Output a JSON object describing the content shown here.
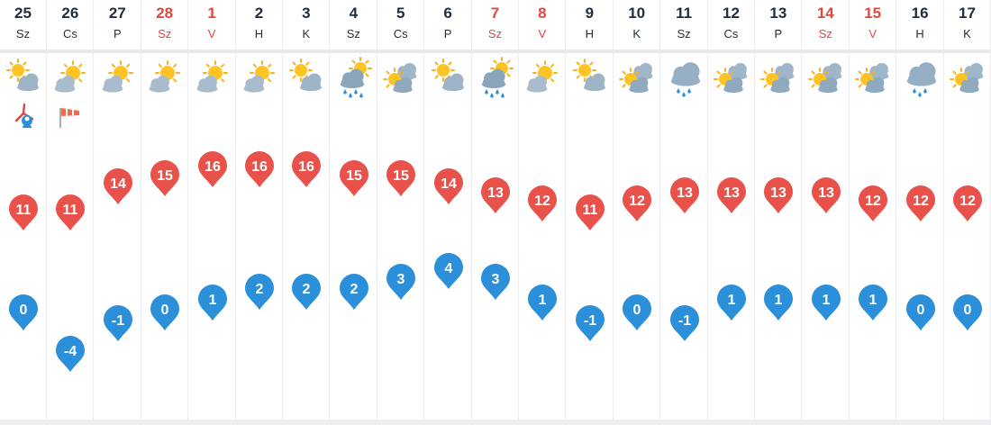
{
  "colors": {
    "max_temp_pin": "#e9524a",
    "min_temp_pin": "#2b8fd9",
    "weekend_text": "#e2463f",
    "weekday_text": "#1f2d3d"
  },
  "scale": {
    "temp_min": -4,
    "temp_max": 16
  },
  "days": [
    {
      "date": "25",
      "weekday": "Sz",
      "weekend": false,
      "icon": "sun-cloud-icon",
      "max": "11",
      "min": "0",
      "extra_icons": [
        "wind-turbine-icon"
      ]
    },
    {
      "date": "26",
      "weekday": "Cs",
      "weekend": false,
      "icon": "cloud-sun-icon",
      "max": "11",
      "min": "-4",
      "extra_icons": [
        "windsock-icon"
      ]
    },
    {
      "date": "27",
      "weekday": "P",
      "weekend": false,
      "icon": "cloud-sun-icon",
      "max": "14",
      "min": "-1",
      "extra_icons": []
    },
    {
      "date": "28",
      "weekday": "Sz",
      "weekend": true,
      "icon": "cloud-sun-icon",
      "max": "15",
      "min": "0",
      "extra_icons": []
    },
    {
      "date": "1",
      "weekday": "V",
      "weekend": true,
      "icon": "cloud-sun-icon",
      "max": "16",
      "min": "1",
      "extra_icons": []
    },
    {
      "date": "2",
      "weekday": "H",
      "weekend": false,
      "icon": "cloud-sun-icon",
      "max": "16",
      "min": "2",
      "extra_icons": []
    },
    {
      "date": "3",
      "weekday": "K",
      "weekend": false,
      "icon": "sun-cloud-icon",
      "max": "16",
      "min": "2",
      "extra_icons": []
    },
    {
      "date": "4",
      "weekday": "Sz",
      "weekend": false,
      "icon": "rain-sun-icon",
      "max": "15",
      "min": "2",
      "extra_icons": []
    },
    {
      "date": "5",
      "weekday": "Cs",
      "weekend": false,
      "icon": "sun-clouds-icon",
      "max": "15",
      "min": "3",
      "extra_icons": []
    },
    {
      "date": "6",
      "weekday": "P",
      "weekend": false,
      "icon": "sun-cloud-icon",
      "max": "14",
      "min": "4",
      "extra_icons": []
    },
    {
      "date": "7",
      "weekday": "Sz",
      "weekend": true,
      "icon": "rain-sun-icon",
      "max": "13",
      "min": "3",
      "extra_icons": []
    },
    {
      "date": "8",
      "weekday": "V",
      "weekend": true,
      "icon": "cloud-sun-icon",
      "max": "12",
      "min": "1",
      "extra_icons": []
    },
    {
      "date": "9",
      "weekday": "H",
      "weekend": false,
      "icon": "sun-cloud-icon",
      "max": "11",
      "min": "-1",
      "extra_icons": []
    },
    {
      "date": "10",
      "weekday": "K",
      "weekend": false,
      "icon": "sun-clouds-icon",
      "max": "12",
      "min": "0",
      "extra_icons": []
    },
    {
      "date": "11",
      "weekday": "Sz",
      "weekend": false,
      "icon": "rain-cloud-icon",
      "max": "13",
      "min": "-1",
      "extra_icons": []
    },
    {
      "date": "12",
      "weekday": "Cs",
      "weekend": false,
      "icon": "sun-clouds-icon",
      "max": "13",
      "min": "1",
      "extra_icons": []
    },
    {
      "date": "13",
      "weekday": "P",
      "weekend": false,
      "icon": "sun-clouds-icon",
      "max": "13",
      "min": "1",
      "extra_icons": []
    },
    {
      "date": "14",
      "weekday": "Sz",
      "weekend": true,
      "icon": "sun-clouds-icon",
      "max": "13",
      "min": "1",
      "extra_icons": []
    },
    {
      "date": "15",
      "weekday": "V",
      "weekend": true,
      "icon": "sun-clouds-icon",
      "max": "12",
      "min": "1",
      "extra_icons": []
    },
    {
      "date": "16",
      "weekday": "H",
      "weekend": false,
      "icon": "rain-cloud-icon",
      "max": "12",
      "min": "0",
      "extra_icons": []
    },
    {
      "date": "17",
      "weekday": "K",
      "weekend": false,
      "icon": "sun-clouds-icon",
      "max": "12",
      "min": "0",
      "extra_icons": []
    }
  ]
}
